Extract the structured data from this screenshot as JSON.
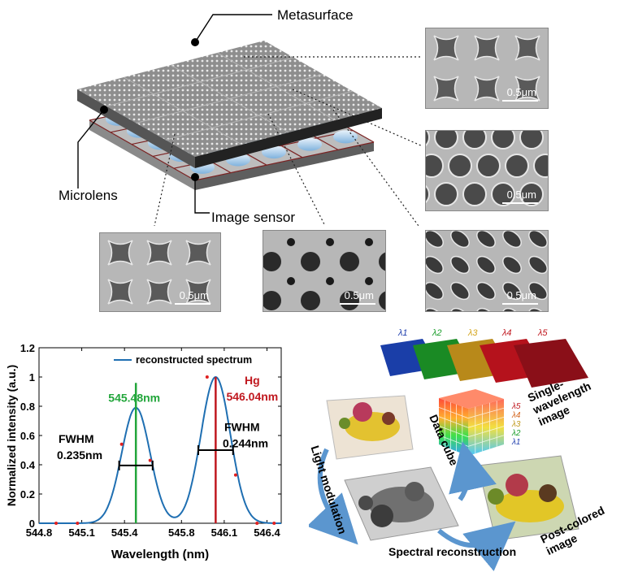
{
  "top_labels": {
    "metasurface": "Metasurface",
    "microlens": "Microlens",
    "image_sensor": "Image sensor"
  },
  "sem_panels": [
    {
      "pattern": "crosses",
      "scale": "0.5μm"
    },
    {
      "pattern": "holes-dense",
      "scale": "0.5μm"
    },
    {
      "pattern": "crosses-small",
      "scale": "0.5μm"
    },
    {
      "pattern": "holes-mixed",
      "scale": "0.5μm"
    },
    {
      "pattern": "ellipses",
      "scale": "0.5μm"
    }
  ],
  "chart_data": {
    "type": "line",
    "xlabel": "Wavelength (nm)",
    "ylabel": "Normalized intensity (a.u.)",
    "xlim": [
      544.8,
      546.5
    ],
    "ylim": [
      0,
      1.2
    ],
    "xticks": [
      "544.8",
      "545.1",
      "545.4",
      "545.8",
      "546.1",
      "546.4"
    ],
    "yticks": [
      "0",
      "0.2",
      "0.4",
      "0.6",
      "0.8",
      "1",
      "1.2"
    ],
    "legend": "reconstructed spectrum",
    "series": [
      {
        "name": "reconstructed spectrum",
        "peaks": [
          {
            "center": 545.48,
            "amplitude": 0.79,
            "fwhm": 0.235
          },
          {
            "center": 546.04,
            "amplitude": 1.0,
            "fwhm": 0.244
          }
        ]
      }
    ],
    "sample_points": [
      {
        "x": 544.92,
        "y": 0.0
      },
      {
        "x": 545.07,
        "y": 0.0
      },
      {
        "x": 545.38,
        "y": 0.54
      },
      {
        "x": 545.58,
        "y": 0.43
      },
      {
        "x": 545.98,
        "y": 1.0
      },
      {
        "x": 546.18,
        "y": 0.33
      },
      {
        "x": 546.33,
        "y": 0.0
      },
      {
        "x": 546.45,
        "y": 0.0
      }
    ],
    "markers": [
      {
        "x": 545.48,
        "label": "545.48nm",
        "color": "#22a63b"
      },
      {
        "x": 546.04,
        "label_top": "Hg",
        "label": "546.04nm",
        "color": "#c0181f"
      }
    ],
    "fwhm_labels": [
      {
        "title": "FWHM",
        "value": "0.235nm"
      },
      {
        "title": "FWHM",
        "value": "0.244nm"
      }
    ]
  },
  "right_diagram": {
    "lambdas": [
      "λ1",
      "λ2",
      "λ3",
      "λ4",
      "λ5"
    ],
    "lambda_colors": [
      "#1f3fae",
      "#1a9d2a",
      "#d4a51c",
      "#c0181f",
      "#c0181f"
    ],
    "cube_lambdas": [
      "λ5",
      "λ4",
      "λ3",
      "λ2",
      "λ1"
    ],
    "single_wavelength": "Single-\nwavelength\nimage",
    "data_cube": "Data cube",
    "light_modulation": "Light modulation",
    "spectral_reconstruction": "Spectral reconstruction",
    "post_colored": "Post-colored\nimage"
  }
}
